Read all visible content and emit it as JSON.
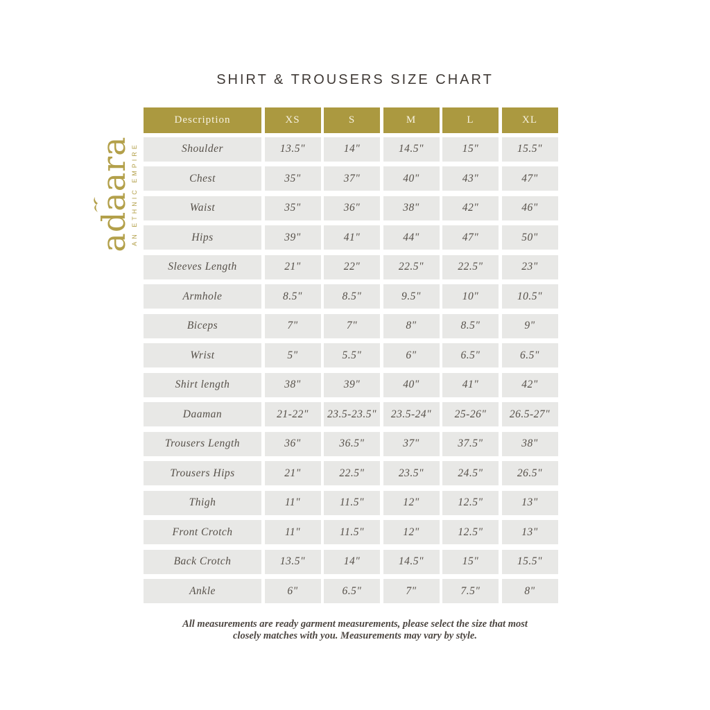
{
  "title": "SHIRT & TROUSERS SIZE CHART",
  "logo": {
    "brand": "adaara",
    "tagline": "AN ETHNIC EMPIRE"
  },
  "colors": {
    "gold": "#ab9940",
    "cell_bg": "#e8e8e6",
    "text": "#565049"
  },
  "table": {
    "headers": [
      "Description",
      "XS",
      "S",
      "M",
      "L",
      "XL"
    ],
    "rows": [
      {
        "label": "Shoulder",
        "values": [
          "13.5\"",
          "14\"",
          "14.5\"",
          "15\"",
          "15.5\""
        ]
      },
      {
        "label": "Chest",
        "values": [
          "35\"",
          "37\"",
          "40\"",
          "43\"",
          "47\""
        ]
      },
      {
        "label": "Waist",
        "values": [
          "35\"",
          "36\"",
          "38\"",
          "42\"",
          "46\""
        ]
      },
      {
        "label": "Hips",
        "values": [
          "39\"",
          "41\"",
          "44\"",
          "47\"",
          "50\""
        ]
      },
      {
        "label": "Sleeves Length",
        "values": [
          "21\"",
          "22\"",
          "22.5\"",
          "22.5\"",
          "23\""
        ]
      },
      {
        "label": "Armhole",
        "values": [
          "8.5\"",
          "8.5\"",
          "9.5\"",
          "10\"",
          "10.5\""
        ]
      },
      {
        "label": "Biceps",
        "values": [
          "7\"",
          "7\"",
          "8\"",
          "8.5\"",
          "9\""
        ]
      },
      {
        "label": "Wrist",
        "values": [
          "5\"",
          "5.5\"",
          "6\"",
          "6.5\"",
          "6.5\""
        ]
      },
      {
        "label": "Shirt length",
        "values": [
          "38\"",
          "39\"",
          "40\"",
          "41\"",
          "42\""
        ]
      },
      {
        "label": "Daaman",
        "values": [
          "21-22\"",
          "23.5-23.5\"",
          "23.5-24\"",
          "25-26\"",
          "26.5-27\""
        ]
      },
      {
        "label": "Trousers Length",
        "values": [
          "36\"",
          "36.5\"",
          "37\"",
          "37.5\"",
          "38\""
        ]
      },
      {
        "label": "Trousers Hips",
        "values": [
          "21\"",
          "22.5\"",
          "23.5\"",
          "24.5\"",
          "26.5\""
        ]
      },
      {
        "label": "Thigh",
        "values": [
          "11\"",
          "11.5\"",
          "12\"",
          "12.5\"",
          "13\""
        ]
      },
      {
        "label": "Front Crotch",
        "values": [
          "11\"",
          "11.5\"",
          "12\"",
          "12.5\"",
          "13\""
        ]
      },
      {
        "label": "Back Crotch",
        "values": [
          "13.5\"",
          "14\"",
          "14.5\"",
          "15\"",
          "15.5\""
        ]
      },
      {
        "label": "Ankle",
        "values": [
          "6\"",
          "6.5\"",
          "7\"",
          "7.5\"",
          "8\""
        ]
      }
    ]
  },
  "footnote": {
    "line1": "All measurements are ready garment measurements, please select the size that most",
    "line2": "closely matches with you. Measurements may vary by style."
  }
}
